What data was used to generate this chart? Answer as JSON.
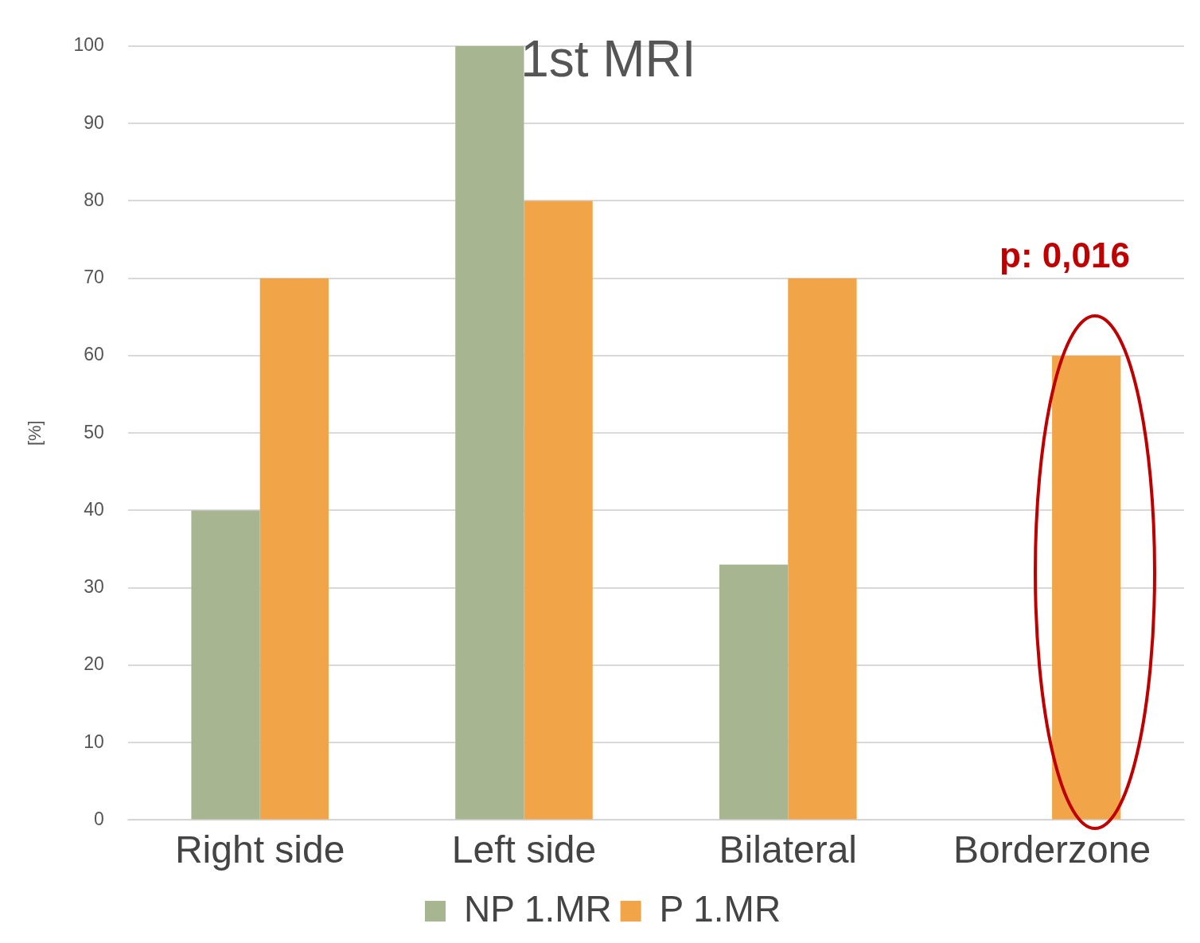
{
  "chart_data": {
    "type": "bar",
    "title": "1st MRI",
    "ylabel": "[%]",
    "categories": [
      "Right side",
      "Left side",
      "Bilateral",
      "Borderzone"
    ],
    "series": [
      {
        "name": "NP 1.MR",
        "color": "#a7b591",
        "values": [
          40,
          100,
          33,
          0
        ]
      },
      {
        "name": "P 1.MR",
        "color": "#f2a449",
        "values": [
          70,
          80,
          70,
          60
        ]
      }
    ],
    "ylim": [
      0,
      100
    ],
    "yticks": [
      0,
      10,
      20,
      30,
      40,
      50,
      60,
      70,
      80,
      90,
      100
    ],
    "grid": "y",
    "legend": "bottom",
    "annotations": [
      "p: 0,016"
    ]
  }
}
